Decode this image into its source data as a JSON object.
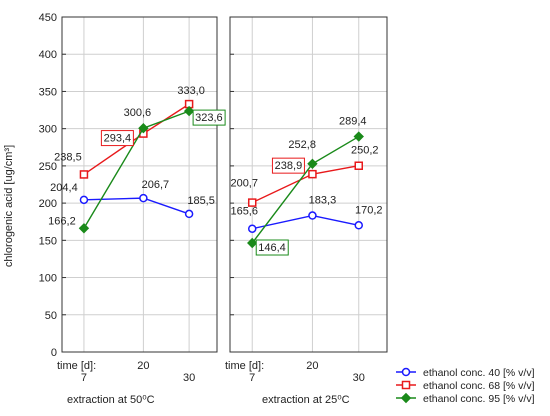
{
  "chart_data": {
    "type": "line",
    "ylabel": "chlorogenic acid [ug/cm³]",
    "ylim": [
      0,
      450
    ],
    "yticks": [
      0,
      50,
      100,
      150,
      200,
      250,
      300,
      350,
      400,
      450
    ],
    "x_prefix_label": "time [d]:",
    "xticks": [
      7,
      20,
      30
    ],
    "legend_position": "bottom-right",
    "grid": true,
    "colors": {
      "s40": "#1a1aff",
      "s68": "#e8191b",
      "s95": "#1a8a1a"
    },
    "panels": [
      {
        "xlabel": "extraction at 50⁰C",
        "series": [
          {
            "name": "ethanol conc. 40 [% v/v]",
            "x": [
              7,
              20,
              30
            ],
            "values": [
              204.4,
              206.7,
              185.5
            ],
            "labels": [
              "204,4",
              "206,7",
              "185,5"
            ]
          },
          {
            "name": "ethanol conc. 68 [% v/v]",
            "x": [
              7,
              20,
              30
            ],
            "values": [
              238.5,
              293.4,
              333.0
            ],
            "labels": [
              "238,5",
              "293,4",
              "333,0"
            ]
          },
          {
            "name": "ethanol conc. 95 [% v/v]",
            "x": [
              7,
              20,
              30
            ],
            "values": [
              166.2,
              300.6,
              323.6
            ],
            "labels": [
              "166,2",
              "300,6",
              "323,6"
            ]
          }
        ]
      },
      {
        "xlabel": "extraction at 25⁰C",
        "series": [
          {
            "name": "ethanol conc. 40 [% v/v]",
            "x": [
              7,
              20,
              30
            ],
            "values": [
              165.6,
              183.3,
              170.2
            ],
            "labels": [
              "165,6",
              "183,3",
              "170,2"
            ]
          },
          {
            "name": "ethanol conc. 68 [% v/v]",
            "x": [
              7,
              20,
              30
            ],
            "values": [
              200.7,
              238.9,
              250.2
            ],
            "labels": [
              "200,7",
              "238,9",
              "250,2"
            ]
          },
          {
            "name": "ethanol conc. 95 [% v/v]",
            "x": [
              7,
              20,
              30
            ],
            "values": [
              146.4,
              252.8,
              289.4
            ],
            "labels": [
              "146,4",
              "252,8",
              "289,4"
            ]
          }
        ]
      }
    ]
  }
}
